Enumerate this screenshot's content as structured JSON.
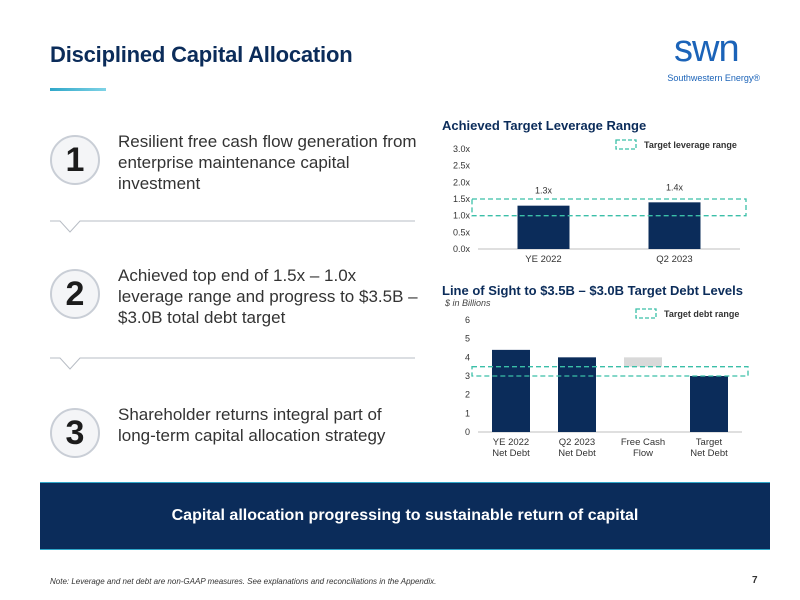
{
  "header": {
    "title": "Disciplined Capital Allocation",
    "logo_word": "swn",
    "logo_sub": "Southwestern Energy®"
  },
  "points": [
    {
      "number": "1",
      "text": "Resilient free cash flow generation from enterprise maintenance capital investment"
    },
    {
      "number": "2",
      "text": "Achieved top end of 1.5x – 1.0x leverage range and progress to $3.5B – $3.0B total debt target"
    },
    {
      "number": "3",
      "text": "Shareholder returns integral part of long-term capital allocation strategy"
    }
  ],
  "banner": {
    "text": "Capital allocation progressing to sustainable return of capital"
  },
  "footer": {
    "note": "Note: Leverage and net debt are non-GAAP measures. See explanations and reconciliations in the Appendix.",
    "page_number": "7"
  },
  "colors": {
    "navy": "#0b2c5a",
    "teal": "#3bbfa8",
    "gray": "#d9d9d9"
  },
  "chart_data": [
    {
      "type": "bar",
      "title": "Achieved Target Leverage Range",
      "categories": [
        "YE 2022",
        "Q2 2023"
      ],
      "values": [
        1.3,
        1.4
      ],
      "data_labels": [
        "1.3x",
        "1.4x"
      ],
      "yticks": [
        "0.0x",
        "0.5x",
        "1.0x",
        "1.5x",
        "2.0x",
        "2.5x",
        "3.0x"
      ],
      "ylim": [
        0,
        3.0
      ],
      "target_range": [
        1.0,
        1.5
      ],
      "legend": "Target leverage range",
      "legend_position": "top-right"
    },
    {
      "type": "bar",
      "title": "Line of Sight to $3.5B – $3.0B Target Debt Levels",
      "units": "$ in Billions",
      "categories": [
        "YE 2022\nNet Debt",
        "Q2 2023\nNet Debt",
        "Free Cash\nFlow",
        "Target\nNet Debt"
      ],
      "values": [
        4.4,
        4.0,
        4.0,
        3.0
      ],
      "bar_base": [
        0,
        0,
        3.5,
        0
      ],
      "bar_colors": [
        "#0b2c5a",
        "#0b2c5a",
        "#d9d9d9",
        "#0b2c5a"
      ],
      "yticks": [
        "0",
        "1",
        "2",
        "3",
        "4",
        "5",
        "6"
      ],
      "ylim": [
        0,
        6
      ],
      "target_range": [
        3.0,
        3.5
      ],
      "legend": "Target debt range",
      "legend_position": "top-right"
    }
  ]
}
